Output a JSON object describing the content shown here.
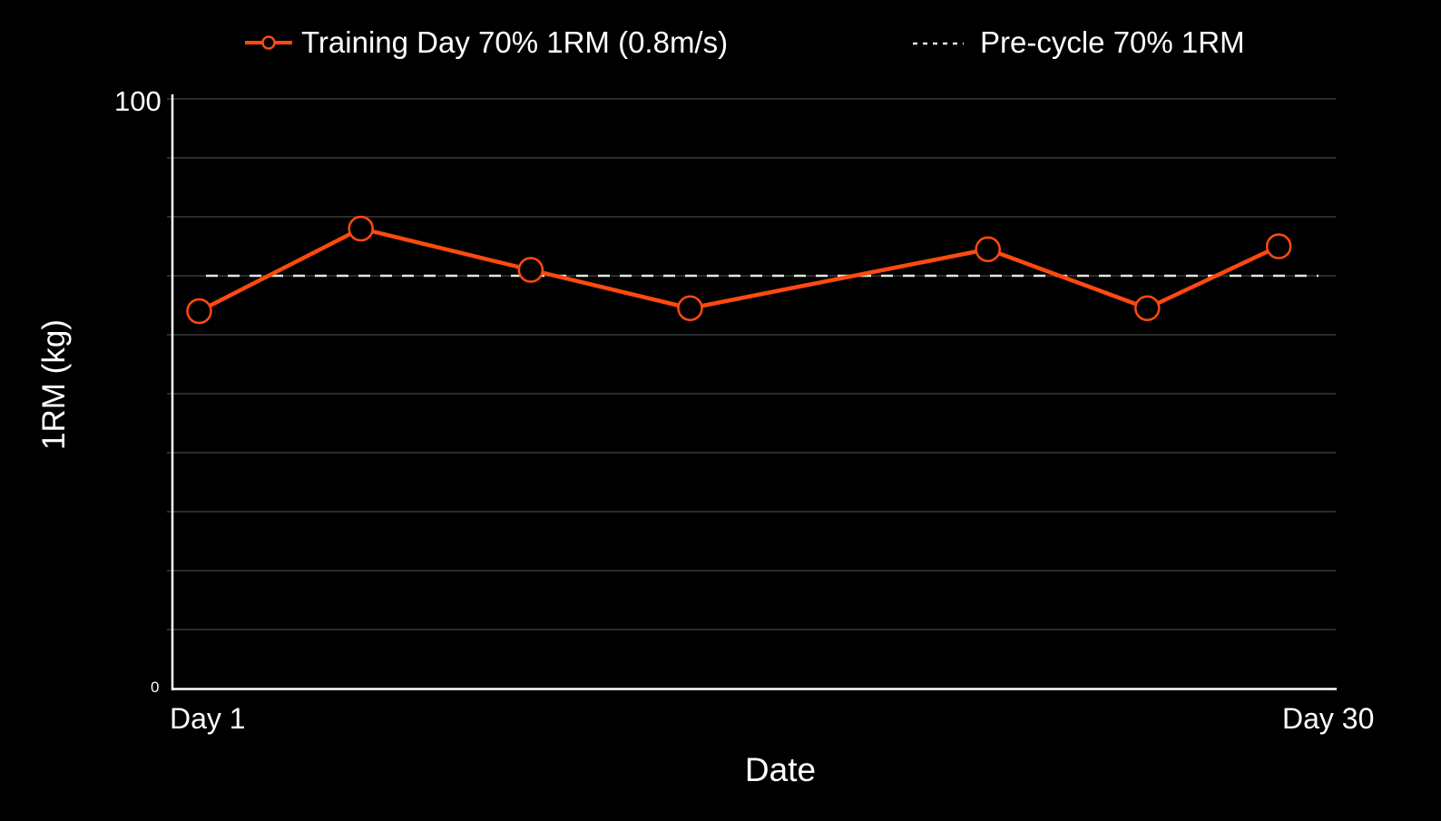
{
  "chart_data": {
    "type": "line",
    "title": "",
    "xlabel": "Date",
    "ylabel": "1RM (kg)",
    "ylim": [
      0,
      100
    ],
    "y_ticks_labeled": [
      "0",
      "100"
    ],
    "y_gridlines": [
      10,
      20,
      30,
      40,
      50,
      60,
      70,
      80,
      90,
      100
    ],
    "x_tick_labels": [
      "Day 1",
      "Day 30"
    ],
    "grid": true,
    "legend_position": "top",
    "series": [
      {
        "name": "Training Day 70% 1RM (0.8m/s)",
        "style": "solid line with hollow circle markers",
        "color": "#ff4a0f",
        "x_positions": [
          0.023,
          0.162,
          0.308,
          0.445,
          0.701,
          0.838,
          0.951
        ],
        "values": [
          64,
          78,
          71,
          64.5,
          74.5,
          64.5,
          75
        ]
      },
      {
        "name": "Pre-cycle 70% 1RM",
        "style": "dashed horizontal reference line",
        "color": "#dde8e3",
        "values": [
          70
        ]
      }
    ]
  },
  "legend": {
    "series_label": "Training Day 70% 1RM (0.8m/s)",
    "reference_label": "Pre-cycle 70% 1RM"
  },
  "axes": {
    "y_top": "100",
    "y_bottom": "0",
    "x_first": "Day 1",
    "x_last": "Day 30",
    "x_title": "Date",
    "y_title": "1RM (kg)"
  },
  "colors": {
    "background": "#000000",
    "series": "#ff4a0f",
    "reference": "#dde8e3",
    "grid": "#3a3a3a",
    "axis": "#ffffff"
  }
}
